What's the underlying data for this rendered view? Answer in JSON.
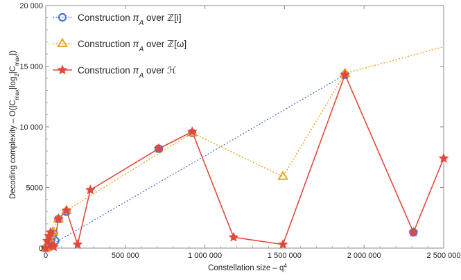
{
  "chart_data": {
    "type": "line",
    "xlabel": "Constellation size – q",
    "xlabel_superscript": "4",
    "ylabel": "Decoding complexity – O(|C",
    "ylabel_sub1": "max",
    "ylabel_mid": "|log",
    "ylabel_sub2": "2",
    "ylabel_mid2": "|C",
    "ylabel_sub3": "max",
    "ylabel_end": "|)",
    "xlim": [
      0,
      2500000
    ],
    "ylim": [
      0,
      20000
    ],
    "x_ticks": [
      0,
      500000,
      1000000,
      1500000,
      2000000,
      2500000
    ],
    "x_tick_labels": [
      "0",
      "500 000",
      "1 000 000",
      "1 500 000",
      "2 000 000",
      "2 500 000"
    ],
    "y_ticks": [
      0,
      5000,
      10000,
      15000,
      20000
    ],
    "y_tick_labels": [
      "0",
      "5000",
      "10 000",
      "15 000",
      "20 000"
    ],
    "legend_position": "top-left",
    "series": [
      {
        "name": "Construction π_A over ℤ[i]",
        "legend_text": "Construction ",
        "legend_math": "π",
        "legend_sub": "A",
        "legend_over": " over ",
        "legend_ring": "ℤ[i]",
        "color": "#4a72d6",
        "marker": "circle",
        "line_style": "dotted",
        "x": [
          0,
          10000,
          20000,
          30000,
          40000,
          50000,
          60000,
          80000,
          130000,
          710000,
          920000,
          1880000,
          2310000
        ],
        "y": [
          0,
          100,
          300,
          700,
          1000,
          1200,
          600,
          2400,
          3000,
          8200,
          9500,
          14300,
          1300
        ],
        "trend_x": [
          0,
          1880000
        ],
        "trend_y": [
          0,
          14300
        ]
      },
      {
        "name": "Construction π_A over ℤ[ω]",
        "legend_text": "Construction ",
        "legend_math": "π",
        "legend_sub": "A",
        "legend_over": " over ",
        "legend_ring": "ℤ[ω]",
        "color": "#f0a020",
        "marker": "triangle",
        "line_style": "dotted",
        "x": [
          0,
          10000,
          20000,
          30000,
          45000,
          80000,
          130000,
          920000,
          1490000,
          1880000,
          2500000
        ],
        "y": [
          0,
          300,
          800,
          1100,
          1350,
          2400,
          3100,
          9500,
          5900,
          14400,
          16600
        ]
      },
      {
        "name": "Construction π_A over ℋ",
        "legend_text": "Construction ",
        "legend_math": "π",
        "legend_sub": "A",
        "legend_over": " over ",
        "legend_ring": "ℋ",
        "color": "#e5473a",
        "marker": "star",
        "line_style": "solid",
        "x": [
          0,
          10000,
          20000,
          30000,
          40000,
          50000,
          80000,
          130000,
          200000,
          280000,
          710000,
          920000,
          1180000,
          1490000,
          1880000,
          2310000,
          2500000
        ],
        "y": [
          0,
          600,
          1000,
          1300,
          200,
          100,
          2400,
          3100,
          300,
          4800,
          8200,
          9600,
          900,
          300,
          14300,
          1300,
          7400
        ]
      }
    ]
  }
}
